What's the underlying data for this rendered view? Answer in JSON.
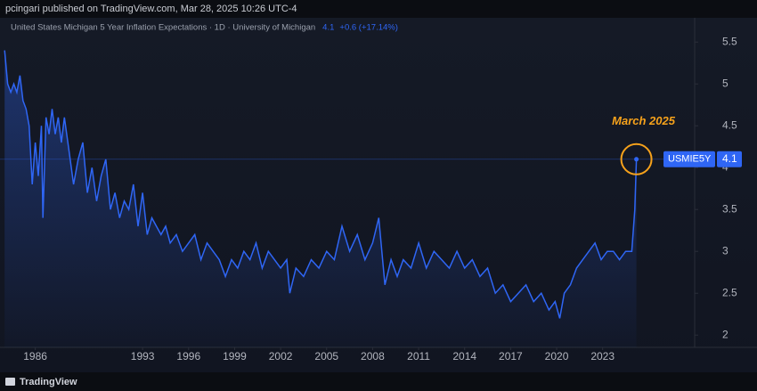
{
  "header": "pcingari published on TradingView.com, Mar 28, 2025 10:26 UTC-4",
  "footer": "TradingView",
  "chart_data": {
    "type": "line",
    "title": "United States Michigan 5 Year Inflation Expectations · 1D · University of Michigan",
    "change": "+0.6 (+17.14%)",
    "annotation": "March 2025",
    "x": [
      1984.0,
      1984.2,
      1984.4,
      1984.6,
      1984.8,
      1985.0,
      1985.2,
      1985.4,
      1985.6,
      1985.8,
      1986.0,
      1986.2,
      1986.4,
      1986.5,
      1986.7,
      1986.9,
      1987.1,
      1987.3,
      1987.5,
      1987.7,
      1987.9,
      1988.2,
      1988.5,
      1988.8,
      1989.1,
      1989.4,
      1989.7,
      1990.0,
      1990.3,
      1990.6,
      1990.9,
      1991.2,
      1991.5,
      1991.8,
      1992.1,
      1992.4,
      1992.7,
      1993.0,
      1993.3,
      1993.6,
      1993.9,
      1994.2,
      1994.5,
      1994.8,
      1995.2,
      1995.6,
      1996.0,
      1996.4,
      1996.8,
      1997.2,
      1997.6,
      1998.0,
      1998.4,
      1998.8,
      1999.2,
      1999.6,
      2000.0,
      2000.4,
      2000.8,
      2001.2,
      2001.6,
      2002.0,
      2002.4,
      2002.6,
      2003.0,
      2003.5,
      2004.0,
      2004.5,
      2005.0,
      2005.5,
      2006.0,
      2006.5,
      2007.0,
      2007.5,
      2008.0,
      2008.4,
      2008.8,
      2009.2,
      2009.6,
      2010.0,
      2010.5,
      2011.0,
      2011.5,
      2012.0,
      2012.5,
      2013.0,
      2013.5,
      2014.0,
      2014.5,
      2015.0,
      2015.5,
      2016.0,
      2016.5,
      2017.0,
      2017.5,
      2018.0,
      2018.5,
      2019.0,
      2019.5,
      2019.9,
      2020.2,
      2020.5,
      2020.9,
      2021.3,
      2021.7,
      2022.1,
      2022.5,
      2022.9,
      2023.3,
      2023.7,
      2024.1,
      2024.5,
      2024.9,
      2025.1,
      2025.2
    ],
    "series": [
      {
        "name": "USMIE5Y",
        "color": "#2f66f5",
        "values": [
          5.4,
          5.0,
          4.9,
          5.0,
          4.9,
          5.1,
          4.8,
          4.7,
          4.5,
          3.8,
          4.3,
          3.9,
          4.5,
          3.4,
          4.6,
          4.4,
          4.7,
          4.4,
          4.6,
          4.3,
          4.6,
          4.2,
          3.8,
          4.1,
          4.3,
          3.7,
          4.0,
          3.6,
          3.9,
          4.1,
          3.5,
          3.7,
          3.4,
          3.6,
          3.5,
          3.8,
          3.3,
          3.7,
          3.2,
          3.4,
          3.3,
          3.2,
          3.3,
          3.1,
          3.2,
          3.0,
          3.1,
          3.2,
          2.9,
          3.1,
          3.0,
          2.9,
          2.7,
          2.9,
          2.8,
          3.0,
          2.9,
          3.1,
          2.8,
          3.0,
          2.9,
          2.8,
          2.9,
          2.5,
          2.8,
          2.7,
          2.9,
          2.8,
          3.0,
          2.9,
          3.3,
          3.0,
          3.2,
          2.9,
          3.1,
          3.4,
          2.6,
          2.9,
          2.7,
          2.9,
          2.8,
          3.1,
          2.8,
          3.0,
          2.9,
          2.8,
          3.0,
          2.8,
          2.9,
          2.7,
          2.8,
          2.5,
          2.6,
          2.4,
          2.5,
          2.6,
          2.4,
          2.5,
          2.3,
          2.4,
          2.2,
          2.5,
          2.6,
          2.8,
          2.9,
          3.0,
          3.1,
          2.9,
          3.0,
          3.0,
          2.9,
          3.0,
          3.0,
          3.5,
          4.1
        ]
      }
    ],
    "xlim": [
      1983.7,
      2029
    ],
    "xticks": [
      1986,
      1993,
      1996,
      1999,
      2002,
      2005,
      2008,
      2011,
      2014,
      2017,
      2020,
      2023
    ],
    "ylim": [
      1.8,
      5.63
    ],
    "yticks": [
      2,
      2.5,
      3,
      3.5,
      4,
      4.5,
      5,
      5.5
    ],
    "annotation_color": "#f7a21b"
  }
}
